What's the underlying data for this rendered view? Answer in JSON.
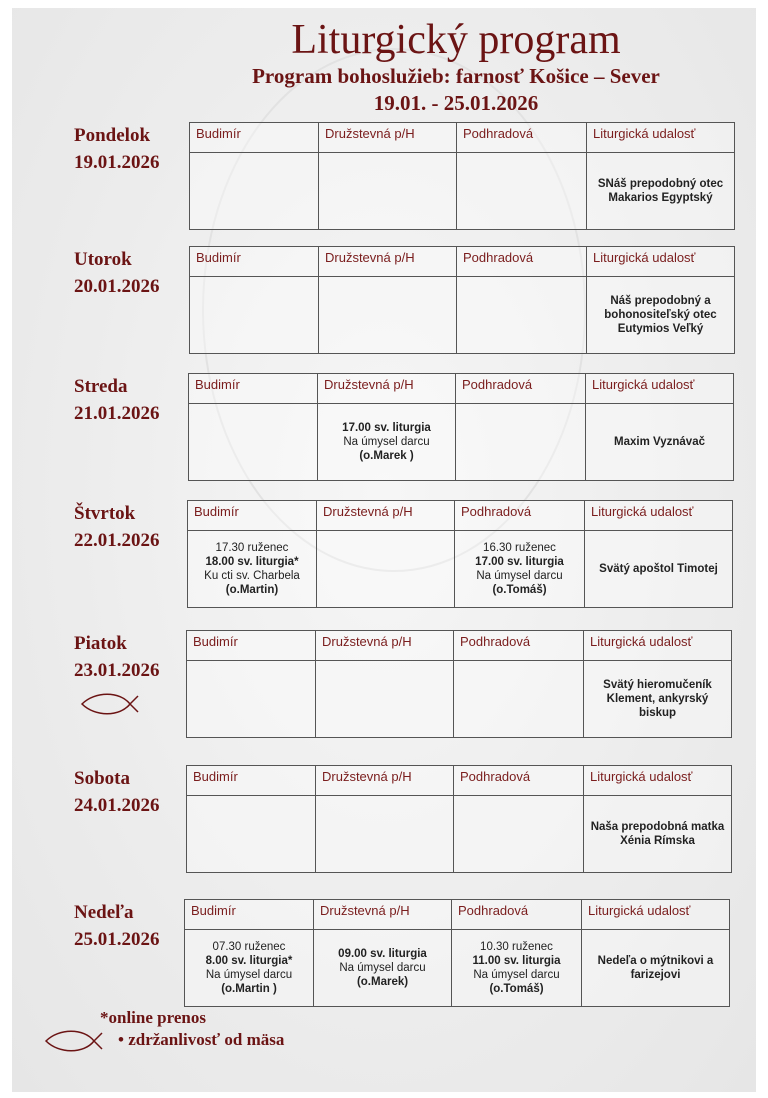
{
  "header": {
    "title": "Liturgický program",
    "subtitle": "Program bohoslužieb: farnosť Košice – Sever",
    "date_range": "19.01. - 25.01.2026"
  },
  "columns": [
    "Budimír",
    "Družstevná p/H",
    "Podhradová",
    "Liturgická udalosť"
  ],
  "days": [
    {
      "name": "Pondelok",
      "date": "19.01.2026",
      "cells": [
        [],
        [],
        [],
        [
          {
            "t": "SNáš prepodobný otec Makarios Egyptský",
            "b": true
          }
        ]
      ]
    },
    {
      "name": "Utorok",
      "date": "20.01.2026",
      "cells": [
        [],
        [],
        [],
        [
          {
            "t": "Náš prepodobný a bohonositeľský otec Eutymios Veľký",
            "b": true
          }
        ]
      ]
    },
    {
      "name": "Streda",
      "date": "21.01.2026",
      "cells": [
        [],
        [
          {
            "t": "17.00 sv. liturgia",
            "b": true
          },
          {
            "t": "Na úmysel darcu"
          },
          {
            "t": "(o.Marek )",
            "b": true
          }
        ],
        [],
        [
          {
            "t": "Maxim Vyznávač",
            "b": true
          }
        ]
      ]
    },
    {
      "name": "Štvrtok",
      "date": "22.01.2026",
      "cells": [
        [
          {
            "t": "17.30 ruženec"
          },
          {
            "t": "18.00 sv. liturgia*",
            "b": true
          },
          {
            "t": "Ku cti sv. Charbela"
          },
          {
            "t": "(o.Martin)",
            "b": true
          }
        ],
        [],
        [
          {
            "t": "16.30 ruženec"
          },
          {
            "t": "17.00 sv. liturgia",
            "b": true
          },
          {
            "t": "Na úmysel darcu"
          },
          {
            "t": "(o.Tomáš)",
            "b": true
          }
        ],
        [
          {
            "t": "Svätý apoštol Timotej",
            "b": true
          }
        ]
      ]
    },
    {
      "name": "Piatok",
      "date": "23.01.2026",
      "fish": true,
      "cells": [
        [],
        [],
        [],
        [
          {
            "t": "Svätý hieromučeník Klement, ankyrský biskup",
            "b": true
          }
        ]
      ]
    },
    {
      "name": "Sobota",
      "date": "24.01.2026",
      "cells": [
        [],
        [],
        [],
        [
          {
            "t": "Naša prepodobná matka Xénia Rímska",
            "b": true
          }
        ]
      ]
    },
    {
      "name": "Nedeľa",
      "date": "25.01.2026",
      "cells": [
        [
          {
            "t": "07.30 ruženec"
          },
          {
            "t": "8.00 sv. liturgia*",
            "b": true
          },
          {
            "t": "Na úmysel darcu"
          },
          {
            "t": "(o.Martin )",
            "b": true
          }
        ],
        [
          {
            "t": "09.00 sv. liturgia",
            "b": true
          },
          {
            "t": "Na úmysel darcu"
          },
          {
            "t": "(o.Marek)",
            "b": true
          }
        ],
        [
          {
            "t": "10.30 ruženec"
          },
          {
            "t": "11.00 sv. liturgia",
            "b": true
          },
          {
            "t": "Na úmysel darcu"
          },
          {
            "t": "(o.Tomáš)",
            "b": true
          }
        ],
        [
          {
            "t": "Nedeľa o mýtnikovi a farizejovi",
            "b": true
          }
        ]
      ]
    }
  ],
  "legend": {
    "online": "*online prenos",
    "fasting": "• zdržanlivosť od mäsa"
  },
  "colors": {
    "accent": "#6b1414"
  },
  "icons": {
    "fasting": "fish-icon"
  }
}
